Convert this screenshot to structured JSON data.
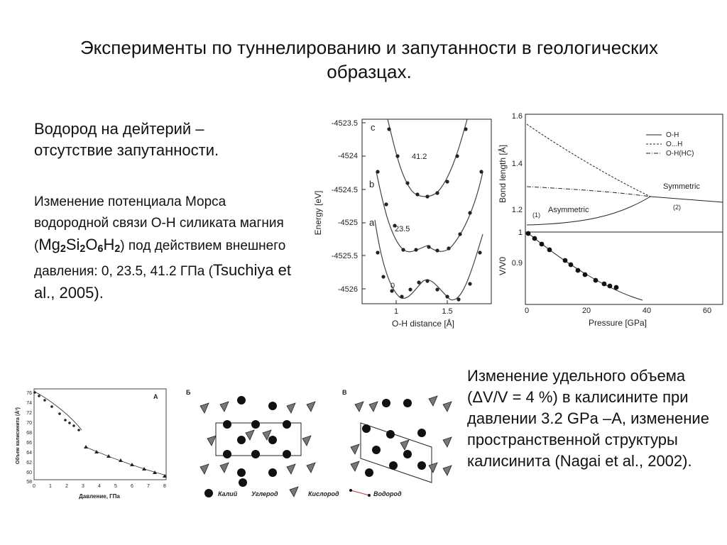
{
  "title": "Эксперименты по туннелированию и запутанности в геологических образцах.",
  "block1": "Водород на дейтерий – отсутствие запутанности.",
  "block2": {
    "p1": "Изменение потенциала Морса водородной связи О-Н силиката магния (",
    "formula_parts": [
      "Mg",
      "2",
      "Si",
      "2",
      "O",
      "6",
      "H",
      "2"
    ],
    "p2": ") под действием внешнего давления: 0, 23.5, 41.2 ГПа (",
    "citation": "Tsuchiya  et al., 2005)."
  },
  "block3": "Изменение удельного объема (ΔV/V = 4 %) в калисините при давлении 3.2 GPa –А, изменение пространственной структуры калисинита   (Nagai  et al., 2002).",
  "fig_energy": {
    "ylabel": "Energy [eV]",
    "xlabel": "O-H distance [Å]",
    "yticks": [
      "-4523.5",
      "-4524",
      "-4524.5",
      "-4525",
      "-4525.5",
      "-4526"
    ],
    "xticks": [
      "1",
      "1.5"
    ],
    "curve_labels": [
      "c",
      "b",
      "a"
    ],
    "pressure_labels": [
      "41.2",
      "23.5",
      "0"
    ]
  },
  "fig_bond": {
    "ylabel_top": "Bond length [Å]",
    "ylabel_bottom": "V/V0",
    "xlabel": "Pressure [GPa]",
    "yticks_top": [
      "1.6",
      "1.4",
      "1.2"
    ],
    "yticks_bottom": [
      "1",
      "0.9"
    ],
    "xticks": [
      "0",
      "20",
      "40",
      "60"
    ],
    "legend": [
      "O-H",
      "O...H",
      "O-H(HC)"
    ],
    "annotations": [
      "Symmetric",
      "Asymmetric",
      "(1)",
      "(2)"
    ]
  },
  "fig_vol": {
    "panel": "A",
    "ylabel": "Объем калисинита (Å³)",
    "xlabel": "Давление, ГПа",
    "yticks": [
      "76",
      "74",
      "72",
      "70",
      "68",
      "66",
      "64",
      "62",
      "60",
      "58"
    ],
    "xticks": [
      "0",
      "1",
      "2",
      "3",
      "4",
      "5",
      "6",
      "7",
      "8"
    ]
  },
  "fig_struct": {
    "panels": [
      "Б",
      "В"
    ],
    "legend": [
      "Калий",
      "Углерод",
      "Кислород",
      "Водород"
    ]
  },
  "colors": {
    "text": "#111111",
    "line": "#333333",
    "marker": "#111111"
  }
}
